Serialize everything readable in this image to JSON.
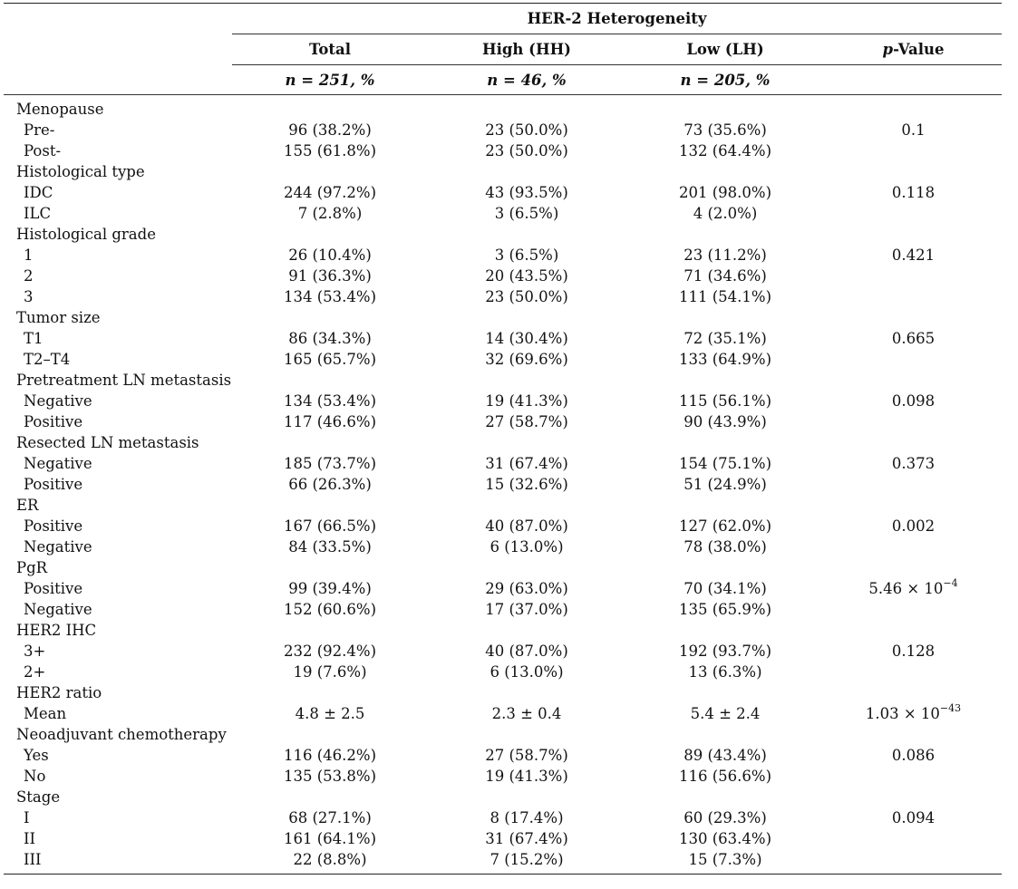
{
  "header": {
    "group_title": "HER-2 Heterogeneity",
    "columns": [
      {
        "label": "Total",
        "n": "n = 251, %"
      },
      {
        "label": "High (HH)",
        "n": "n = 46, %"
      },
      {
        "label": "Low (LH)",
        "n": "n = 205, %"
      },
      {
        "label": "p-Value",
        "label_italic_part": "p",
        "label_rest": "-Value",
        "n": ""
      }
    ]
  },
  "rows": [
    {
      "type": "group",
      "label": "Menopause"
    },
    {
      "type": "item",
      "label": "Pre-",
      "total": "96 (38.2%)",
      "high": "23 (50.0%)",
      "low": "73 (35.6%)",
      "p": "0.1"
    },
    {
      "type": "item",
      "label": "Post-",
      "total": "155 (61.8%)",
      "high": "23 (50.0%)",
      "low": "132 (64.4%)",
      "p": ""
    },
    {
      "type": "group",
      "label": "Histological type"
    },
    {
      "type": "item",
      "label": "IDC",
      "total": "244 (97.2%)",
      "high": "43 (93.5%)",
      "low": "201 (98.0%)",
      "p": "0.118"
    },
    {
      "type": "item",
      "label": "ILC",
      "total": "7 (2.8%)",
      "high": "3 (6.5%)",
      "low": "4 (2.0%)",
      "p": ""
    },
    {
      "type": "group",
      "label": "Histological grade"
    },
    {
      "type": "item",
      "label": "1",
      "total": "26 (10.4%)",
      "high": "3 (6.5%)",
      "low": "23 (11.2%)",
      "p": "0.421"
    },
    {
      "type": "item",
      "label": "2",
      "total": "91 (36.3%)",
      "high": "20 (43.5%)",
      "low": "71 (34.6%)",
      "p": ""
    },
    {
      "type": "item",
      "label": "3",
      "total": "134 (53.4%)",
      "high": "23 (50.0%)",
      "low": "111 (54.1%)",
      "p": ""
    },
    {
      "type": "group",
      "label": "Tumor size"
    },
    {
      "type": "item",
      "label": "T1",
      "total": "86 (34.3%)",
      "high": "14 (30.4%)",
      "low": "72 (35.1%)",
      "p": "0.665"
    },
    {
      "type": "item",
      "label": "T2–T4",
      "total": "165 (65.7%)",
      "high": "32 (69.6%)",
      "low": "133 (64.9%)",
      "p": ""
    },
    {
      "type": "group",
      "label": "Pretreatment LN metastasis"
    },
    {
      "type": "item",
      "label": "Negative",
      "total": "134 (53.4%)",
      "high": "19 (41.3%)",
      "low": "115 (56.1%)",
      "p": "0.098"
    },
    {
      "type": "item",
      "label": "Positive",
      "total": "117 (46.6%)",
      "high": "27 (58.7%)",
      "low": "90 (43.9%)",
      "p": ""
    },
    {
      "type": "group",
      "label": "Resected LN metastasis"
    },
    {
      "type": "item",
      "label": "Negative",
      "total": "185 (73.7%)",
      "high": "31 (67.4%)",
      "low": "154 (75.1%)",
      "p": "0.373"
    },
    {
      "type": "item",
      "label": "Positive",
      "total": "66 (26.3%)",
      "high": "15 (32.6%)",
      "low": "51 (24.9%)",
      "p": ""
    },
    {
      "type": "group",
      "label": "ER"
    },
    {
      "type": "item",
      "label": "Positive",
      "total": "167 (66.5%)",
      "high": "40 (87.0%)",
      "low": "127 (62.0%)",
      "p": "0.002"
    },
    {
      "type": "item",
      "label": "Negative",
      "total": "84 (33.5%)",
      "high": "6 (13.0%)",
      "low": "78 (38.0%)",
      "p": ""
    },
    {
      "type": "group",
      "label": "PgR"
    },
    {
      "type": "item",
      "label": "Positive",
      "total": "99 (39.4%)",
      "high": "29 (63.0%)",
      "low": "70 (34.1%)",
      "p": "5.46 × 10",
      "p_exp": "−4"
    },
    {
      "type": "item",
      "label": "Negative",
      "total": "152 (60.6%)",
      "high": "17 (37.0%)",
      "low": "135 (65.9%)",
      "p": ""
    },
    {
      "type": "group",
      "label": "HER2 IHC"
    },
    {
      "type": "item",
      "label": "3+",
      "total": "232 (92.4%)",
      "high": "40 (87.0%)",
      "low": "192 (93.7%)",
      "p": "0.128"
    },
    {
      "type": "item",
      "label": "2+",
      "total": "19 (7.6%)",
      "high": "6 (13.0%)",
      "low": "13 (6.3%)",
      "p": ""
    },
    {
      "type": "group",
      "label": "HER2 ratio"
    },
    {
      "type": "item",
      "label": "Mean",
      "total": "4.8 ± 2.5",
      "high": "2.3 ± 0.4",
      "low": "5.4 ± 2.4",
      "p": "1.03 × 10",
      "p_exp": "−43"
    },
    {
      "type": "group",
      "label": "Neoadjuvant chemotherapy"
    },
    {
      "type": "item",
      "label": "Yes",
      "total": "116 (46.2%)",
      "high": "27 (58.7%)",
      "low": "89 (43.4%)",
      "p": "0.086"
    },
    {
      "type": "item",
      "label": "No",
      "total": "135 (53.8%)",
      "high": "19 (41.3%)",
      "low": "116 (56.6%)",
      "p": ""
    },
    {
      "type": "group",
      "label": "Stage"
    },
    {
      "type": "item",
      "label": "I",
      "total": "68 (27.1%)",
      "high": "8 (17.4%)",
      "low": "60 (29.3%)",
      "p": "0.094"
    },
    {
      "type": "item",
      "label": "II",
      "total": "161 (64.1%)",
      "high": "31 (67.4%)",
      "low": "130 (63.4%)",
      "p": ""
    },
    {
      "type": "item",
      "label": "III",
      "total": "22 (8.8%)",
      "high": "7 (15.2%)",
      "low": "15 (7.3%)",
      "p": ""
    }
  ]
}
